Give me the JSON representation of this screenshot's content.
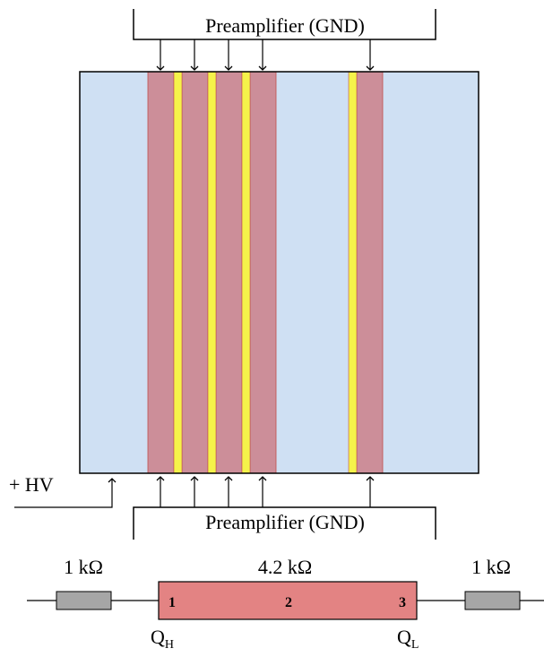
{
  "top_preamp": {
    "label": "Preamplifier (GND)"
  },
  "bottom_preamp": {
    "label": "Preamplifier (GND)"
  },
  "hv": {
    "label": "+ HV"
  },
  "resistors": {
    "left": "1 kΩ",
    "middle": "4.2 kΩ",
    "right": "1 kΩ"
  },
  "strip_numbers": {
    "n1": "1",
    "n2": "2",
    "n3": "3"
  },
  "charges": {
    "high": {
      "base": "Q",
      "sub": "H"
    },
    "low": {
      "base": "Q",
      "sub": "L"
    }
  },
  "colors": {
    "detector_bg": "#cfe0f3",
    "strip": "#cc8e99",
    "gap": "#f5f34a",
    "resistor_body": "#e38383",
    "small_resistor": "#a6a6a6"
  }
}
